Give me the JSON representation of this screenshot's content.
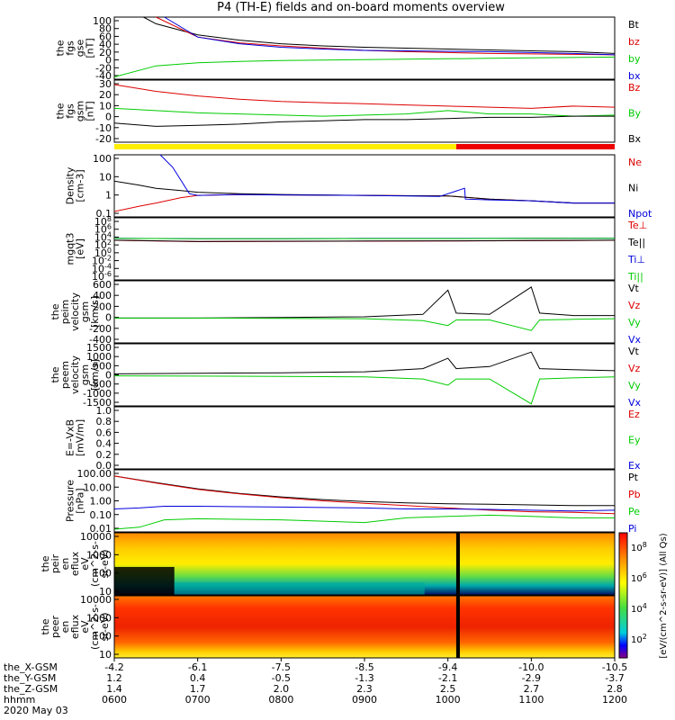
{
  "title": "P4 (TH-E) fields and on-board moments overview",
  "colors": {
    "black": "#000000",
    "red": "#dd0000",
    "green": "#00cc00",
    "blue": "#0000dd",
    "yellow": "#ffee00",
    "bar_red": "#ee0000"
  },
  "chart_data": [
    {
      "type": "line",
      "ylabel_lines": [
        "the",
        "fgs",
        "gse",
        "[nT]"
      ],
      "yticks": [
        "100",
        "80",
        "60",
        "40",
        "20",
        "0",
        "-20",
        "-40"
      ],
      "ylim": [
        -40,
        100
      ],
      "legend": [
        {
          "name": "Bt",
          "color": "#000000"
        },
        {
          "name": "bz",
          "color": "#dd0000"
        },
        {
          "name": "by",
          "color": "#00cc00"
        },
        {
          "name": "bx",
          "color": "#0000dd"
        }
      ],
      "series": [
        {
          "name": "Bt",
          "x": [
            0.35,
            0.5,
            1.0,
            1.5,
            2.0,
            2.5,
            3.0,
            3.5,
            4.0,
            4.5,
            5.0,
            5.5,
            6.0
          ],
          "values": [
            100,
            85,
            60,
            48,
            40,
            35,
            32,
            30,
            28,
            26,
            24,
            22,
            18
          ]
        },
        {
          "name": "bz",
          "x": [
            0.5,
            1.0,
            1.5,
            2.0,
            2.5,
            3.0,
            3.5,
            4.0,
            4.5,
            5.0,
            5.5,
            6.0
          ],
          "values": [
            100,
            55,
            42,
            35,
            30,
            25,
            22,
            20,
            18,
            17,
            16,
            15
          ]
        },
        {
          "name": "by",
          "x": [
            0.0,
            0.5,
            1.0,
            1.5,
            2.0,
            2.5,
            3.0,
            3.5,
            4.0,
            4.5,
            5.0,
            5.5,
            6.0
          ],
          "values": [
            -35,
            -10,
            -3,
            0,
            2,
            3,
            4,
            5,
            6,
            7,
            8,
            9,
            10
          ]
        },
        {
          "name": "bx",
          "x": [
            0.6,
            1.0,
            1.5,
            2.0,
            2.5,
            3.0,
            3.5,
            4.0,
            4.5,
            5.0,
            5.5,
            6.0
          ],
          "values": [
            100,
            55,
            40,
            32,
            28,
            25,
            24,
            23,
            22,
            20,
            18,
            15
          ]
        }
      ]
    },
    {
      "type": "line",
      "ylabel_lines": [
        "the",
        "fgs",
        "gsm",
        "[nT]"
      ],
      "yticks": [
        "30",
        "20",
        "10",
        "0",
        "-10",
        "-20"
      ],
      "ylim": [
        -25,
        30
      ],
      "legend": [
        {
          "name": "Bz",
          "color": "#dd0000"
        },
        {
          "name": "By",
          "color": "#00cc00"
        },
        {
          "name": "Bx",
          "color": "#000000"
        }
      ],
      "series": [
        {
          "name": "Bz",
          "x": [
            0.0,
            0.5,
            1.0,
            1.5,
            2.0,
            2.5,
            3.0,
            3.5,
            4.0,
            4.5,
            5.0,
            5.5,
            6.0
          ],
          "values": [
            26,
            20,
            16,
            13,
            11,
            10,
            9,
            8,
            7,
            6,
            5,
            7,
            6
          ]
        },
        {
          "name": "By",
          "x": [
            0.0,
            0.5,
            1.0,
            1.5,
            2.0,
            2.5,
            3.0,
            3.5,
            4.0,
            4.5,
            5.0,
            5.5,
            6.0
          ],
          "values": [
            5,
            3,
            1,
            0,
            -1,
            -2,
            -1,
            0,
            3,
            0,
            0,
            -2,
            -1
          ]
        },
        {
          "name": "Bx",
          "x": [
            0.0,
            0.5,
            1.0,
            1.5,
            2.0,
            2.5,
            3.0,
            3.5,
            4.0,
            4.5,
            5.0,
            5.5,
            6.0
          ],
          "values": [
            -8,
            -11,
            -10,
            -9,
            -7,
            -6,
            -5,
            -5,
            -4,
            -3,
            -3,
            -2,
            -2
          ]
        }
      ]
    },
    {
      "type": "line",
      "ylabel_lines": [
        "Density",
        "[cm-3]"
      ],
      "yticks": [
        "100",
        "10",
        "1",
        "0.1"
      ],
      "ylog": true,
      "ylim": [
        0.05,
        150
      ],
      "legend": [
        {
          "name": "Ne",
          "color": "#dd0000"
        },
        {
          "name": "Ni",
          "color": "#000000"
        },
        {
          "name": "Npot",
          "color": "#0000dd"
        }
      ],
      "series": [
        {
          "name": "Ne",
          "x": [
            0.0,
            0.3,
            0.5,
            0.8,
            1.0,
            1.5,
            2.0,
            3.0,
            4.0,
            4.5,
            5.0,
            5.5,
            6.0
          ],
          "values": [
            0.1,
            0.2,
            0.3,
            0.6,
            0.8,
            0.9,
            0.85,
            0.8,
            0.75,
            0.5,
            0.4,
            0.3,
            0.3
          ]
        },
        {
          "name": "Ni",
          "x": [
            0.0,
            0.3,
            0.5,
            0.8,
            1.0,
            1.5,
            2.0,
            3.0,
            4.0,
            4.5,
            5.0,
            5.5,
            6.0
          ],
          "values": [
            5.0,
            3.0,
            2.0,
            1.5,
            1.2,
            1.0,
            0.9,
            0.8,
            0.75,
            0.5,
            0.4,
            0.3,
            0.3
          ]
        },
        {
          "name": "Npot",
          "x": [
            0.55,
            0.7,
            0.9,
            1.0,
            1.5,
            2.0,
            3.0,
            3.9,
            4.2,
            4.21,
            4.5,
            5.0,
            5.5,
            6.0
          ],
          "values": [
            150,
            30,
            1.0,
            0.8,
            0.9,
            0.85,
            0.8,
            0.7,
            2.0,
            0.5,
            0.45,
            0.4,
            0.3,
            0.3
          ]
        }
      ]
    },
    {
      "type": "line",
      "ylabel_lines": [
        "mgqt3",
        "[eV]"
      ],
      "yticks": [
        "10^8",
        "10^6",
        "10^4",
        "10^2",
        "10^0",
        "10^-2",
        "10^-4",
        "10^-6"
      ],
      "ylog": true,
      "legend": [
        {
          "name": "Te⊥",
          "color": "#dd0000"
        },
        {
          "name": "Te||",
          "color": "#000000"
        },
        {
          "name": "Ti⊥",
          "color": "#0000dd"
        },
        {
          "name": "Ti||",
          "color": "#00cc00"
        }
      ],
      "series": [
        {
          "name": "Te⊥",
          "x": [
            0,
            1,
            2,
            3,
            4,
            5,
            6
          ],
          "values": [
            1500,
            700,
            800,
            900,
            1000,
            1200,
            1500
          ]
        },
        {
          "name": "Te||",
          "x": [
            0,
            1,
            2,
            3,
            4,
            5,
            6
          ],
          "values": [
            1600,
            800,
            900,
            1000,
            1100,
            1300,
            1600
          ]
        },
        {
          "name": "Ti⊥",
          "x": [
            0,
            1,
            2,
            3,
            4,
            5,
            6
          ],
          "values": [
            5000,
            4000,
            4000,
            4500,
            4500,
            5000,
            5000
          ]
        },
        {
          "name": "Ti||",
          "x": [
            0,
            1,
            2,
            3,
            4,
            5,
            6
          ],
          "values": [
            4500,
            3800,
            3800,
            4200,
            4200,
            4600,
            4600
          ]
        }
      ]
    },
    {
      "type": "line",
      "ylabel_lines": [
        "the",
        "peim",
        "velocity",
        "gsm",
        "[km/s]"
      ],
      "yticks": [
        "600",
        "400",
        "200",
        "0",
        "-200",
        "-400"
      ],
      "ylim": [
        -400,
        600
      ],
      "legend": [
        {
          "name": "Vt",
          "color": "#000000"
        },
        {
          "name": "Vz",
          "color": "#dd0000"
        },
        {
          "name": "Vy",
          "color": "#00cc00"
        },
        {
          "name": "Vx",
          "color": "#0000dd"
        }
      ],
      "series": [
        {
          "name": "Vt",
          "x": [
            0,
            1,
            2,
            3,
            3.7,
            4.0,
            4.1,
            4.5,
            5.0,
            5.1,
            5.5,
            6.0
          ],
          "values": [
            0,
            0,
            10,
            20,
            60,
            450,
            80,
            60,
            500,
            80,
            40,
            40
          ]
        },
        {
          "name": "Vy",
          "x": [
            0,
            1,
            2,
            3,
            3.7,
            4.0,
            4.1,
            4.5,
            5.0,
            5.1,
            5.5,
            6.0
          ],
          "values": [
            0,
            0,
            -5,
            -10,
            -40,
            -120,
            -30,
            -30,
            -200,
            -30,
            -20,
            -10
          ]
        }
      ]
    },
    {
      "type": "line",
      "ylabel_lines": [
        "the",
        "peem",
        "velocity",
        "gsm",
        "[km/s]"
      ],
      "yticks": [
        "1500",
        "1000",
        "500",
        "0",
        "-500",
        "-1000",
        "-1500"
      ],
      "ylim": [
        -1500,
        1500
      ],
      "legend": [
        {
          "name": "Vt",
          "color": "#000000"
        },
        {
          "name": "Vz",
          "color": "#dd0000"
        },
        {
          "name": "Vy",
          "color": "#00cc00"
        },
        {
          "name": "Vx",
          "color": "#0000dd"
        }
      ],
      "series": [
        {
          "name": "Vt",
          "x": [
            0,
            1,
            2,
            3,
            3.7,
            4.0,
            4.1,
            4.5,
            5.0,
            5.1,
            5.5,
            6.0
          ],
          "values": [
            50,
            80,
            100,
            150,
            300,
            800,
            300,
            400,
            1100,
            300,
            250,
            200
          ]
        },
        {
          "name": "Vy",
          "x": [
            0,
            1,
            2,
            3,
            3.7,
            4.0,
            4.1,
            4.5,
            5.0,
            5.1,
            5.5,
            6.0
          ],
          "values": [
            -50,
            -60,
            -80,
            -100,
            -200,
            -500,
            -200,
            -200,
            -1400,
            -200,
            -150,
            -100
          ]
        }
      ]
    },
    {
      "type": "line",
      "ylabel_lines": [
        "E=-VxB",
        "[mV/m]"
      ],
      "yticks": [
        "1.0",
        "0.8",
        "0.6",
        "0.4",
        "0.2",
        "0.0"
      ],
      "ylim": [
        0,
        1
      ],
      "legend": [
        {
          "name": "Ez",
          "color": "#dd0000"
        },
        {
          "name": "Ey",
          "color": "#00cc00"
        },
        {
          "name": "Ex",
          "color": "#0000dd"
        }
      ],
      "series": []
    },
    {
      "type": "line",
      "ylabel_lines": [
        "Pressure",
        "[nPa]"
      ],
      "yticks": [
        "100.00",
        "10.00",
        "1.00",
        "0.10",
        "0.01"
      ],
      "ylog": true,
      "ylim": [
        0.01,
        100
      ],
      "legend": [
        {
          "name": "Pt",
          "color": "#000000"
        },
        {
          "name": "Pb",
          "color": "#dd0000"
        },
        {
          "name": "Pe",
          "color": "#00cc00"
        },
        {
          "name": "Pi",
          "color": "#0000dd"
        }
      ],
      "series": [
        {
          "name": "Pt",
          "x": [
            0,
            0.5,
            1,
            1.5,
            2,
            2.5,
            3,
            3.5,
            4,
            4.5,
            5,
            5.5,
            6
          ],
          "values": [
            40,
            15,
            6,
            3,
            1.8,
            1.2,
            0.9,
            0.75,
            0.65,
            0.6,
            0.55,
            0.5,
            0.5
          ]
        },
        {
          "name": "Pb",
          "x": [
            0,
            0.5,
            1,
            1.5,
            2,
            2.5,
            3,
            3.5,
            4,
            4.5,
            5,
            5.5,
            6
          ],
          "values": [
            40,
            14,
            5.5,
            2.8,
            1.6,
            1.0,
            0.7,
            0.5,
            0.35,
            0.25,
            0.2,
            0.18,
            0.15
          ]
        },
        {
          "name": "Pe",
          "x": [
            0,
            0.3,
            0.6,
            1.0,
            2.0,
            3.0,
            3.5,
            4.0,
            4.5,
            5.0,
            5.5,
            6.0
          ],
          "values": [
            0.015,
            0.02,
            0.06,
            0.07,
            0.06,
            0.04,
            0.08,
            0.1,
            0.12,
            0.1,
            0.08,
            0.08
          ]
        },
        {
          "name": "Pi",
          "x": [
            0,
            0.3,
            0.6,
            1.0,
            2.0,
            3.0,
            3.5,
            4.0,
            4.5,
            5.0,
            5.5,
            6.0
          ],
          "values": [
            0.3,
            0.35,
            0.45,
            0.45,
            0.4,
            0.35,
            0.3,
            0.3,
            0.28,
            0.25,
            0.22,
            0.25
          ]
        }
      ]
    },
    {
      "type": "heatmap",
      "ylabel_lines": [
        "the",
        "peir",
        "en",
        "eflux",
        "eV",
        "(cm^2-s-",
        "sr-eV)"
      ],
      "yticks": [
        "10000",
        "1000",
        "100",
        "10"
      ],
      "colorbar_ticks": [
        "10^8",
        "10^6",
        "10^4",
        "10^2"
      ]
    },
    {
      "type": "heatmap",
      "ylabel_lines": [
        "the",
        "peer",
        "en",
        "eflux",
        "eV",
        "(cm^2-s-",
        "sr-eV)"
      ],
      "yticks": [
        "10000",
        "1000",
        "100",
        "10"
      ],
      "colorbar_ticks": [
        "10^8",
        "10^6",
        "10^4",
        "10^2"
      ]
    }
  ],
  "colorbar_label": "[eV/(cm^2-s-sr-eV)] (All Qs)",
  "xaxis": {
    "row_labels": [
      "the_X-GSM",
      "the_Y-GSM",
      "the_Z-GSM",
      "hhmm",
      "2020 May 03"
    ],
    "columns": [
      [
        "-4.2",
        "1.2",
        "1.4",
        "0600"
      ],
      [
        "-6.1",
        "0.4",
        "1.7",
        "0700"
      ],
      [
        "-7.5",
        "-0.5",
        "2.0",
        "0800"
      ],
      [
        "-8.5",
        "-1.3",
        "2.3",
        "0900"
      ],
      [
        "-9.4",
        "-2.1",
        "2.5",
        "1000"
      ],
      [
        "-10.0",
        "-2.9",
        "2.7",
        "1100"
      ],
      [
        "-10.5",
        "-3.7",
        "2.8",
        "1200"
      ]
    ]
  }
}
